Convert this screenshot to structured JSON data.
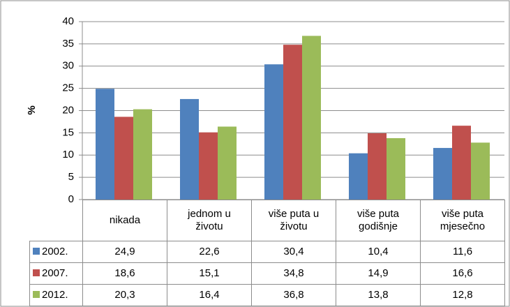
{
  "chart_data": {
    "type": "bar",
    "ylabel": "%",
    "categories": [
      "nikada",
      "jednom u životu",
      "više puta u životu",
      "više puta godišnje",
      "više puta mjesečno"
    ],
    "series": [
      {
        "name": "2002.",
        "color": "#4f81bd",
        "values": [
          24.9,
          22.6,
          30.4,
          10.4,
          11.6
        ],
        "value_labels": [
          "24,9",
          "22,6",
          "30,4",
          "10,4",
          "11,6"
        ]
      },
      {
        "name": "2007.",
        "color": "#c0504d",
        "values": [
          18.6,
          15.1,
          34.8,
          14.9,
          16.6
        ],
        "value_labels": [
          "18,6",
          "15,1",
          "34,8",
          "14,9",
          "16,6"
        ]
      },
      {
        "name": "2012.",
        "color": "#9bbb59",
        "values": [
          20.3,
          16.4,
          36.8,
          13.8,
          12.8
        ],
        "value_labels": [
          "20,3",
          "16,4",
          "36,8",
          "13,8",
          "12,8"
        ]
      }
    ],
    "ylim": [
      0,
      40
    ],
    "yticks": [
      0,
      5,
      10,
      15,
      20,
      25,
      30,
      35,
      40
    ],
    "grid": true
  }
}
